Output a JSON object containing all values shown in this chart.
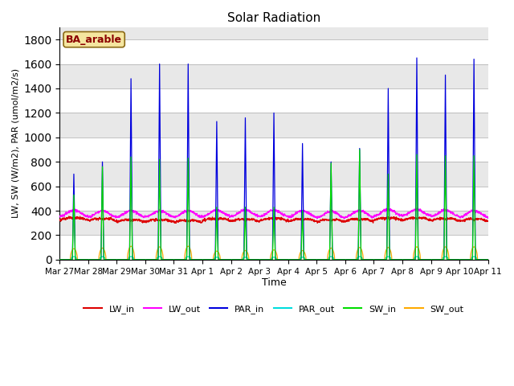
{
  "title": "Solar Radiation",
  "xlabel": "Time",
  "ylabel": "LW, SW (W/m2), PAR (umol/m2/s)",
  "site_label": "BA_arable",
  "background_color": "#d8d8d8",
  "ylim": [
    0,
    1900
  ],
  "yticks": [
    0,
    200,
    400,
    600,
    800,
    1000,
    1200,
    1400,
    1600,
    1800
  ],
  "x_tick_labels": [
    "Mar 27",
    "Mar 28",
    "Mar 29",
    "Mar 30",
    "Mar 31",
    "Apr 1",
    "Apr 2",
    "Apr 3",
    "Apr 4",
    "Apr 5",
    "Apr 6",
    "Apr 7",
    "Apr 8",
    "Apr 9",
    "Apr 10",
    "Apr 11"
  ],
  "num_days": 15,
  "colors": {
    "LW_in": "#dd0000",
    "LW_out": "#ff00ff",
    "PAR_in": "#0000dd",
    "PAR_out": "#00dddd",
    "SW_in": "#00dd00",
    "SW_out": "#ffaa00"
  }
}
